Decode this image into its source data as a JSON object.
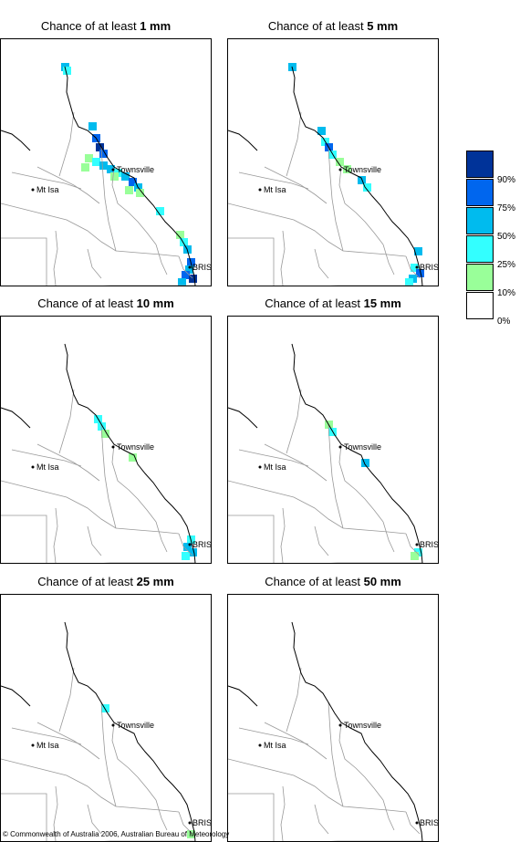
{
  "panels": [
    {
      "prefix": "Chance of at least ",
      "amount": "1 mm",
      "level": 0
    },
    {
      "prefix": "Chance of at least ",
      "amount": "5 mm",
      "level": 1
    },
    {
      "prefix": "Chance of at least ",
      "amount": "10 mm",
      "level": 2
    },
    {
      "prefix": "Chance of at least ",
      "amount": "15 mm",
      "level": 3
    },
    {
      "prefix": "Chance of at least ",
      "amount": "25 mm",
      "level": 4
    },
    {
      "prefix": "Chance of at least ",
      "amount": "50 mm",
      "level": 5
    }
  ],
  "places": {
    "mt_isa": "Mt Isa",
    "townsville": "Townsville",
    "brisbane": "BRIS"
  },
  "legend": {
    "labels": [
      "90%",
      "75%",
      "50%",
      "25%",
      "10%",
      "0%"
    ],
    "colors": [
      "#003399",
      "#0066ee",
      "#00bbee",
      "#33ffff",
      "#99ff99",
      "#ffffff"
    ]
  },
  "copyright": {
    "symbol": "©",
    "text": "Commonwealth of Australia 2006, Australian Bureau of Meteorology"
  }
}
